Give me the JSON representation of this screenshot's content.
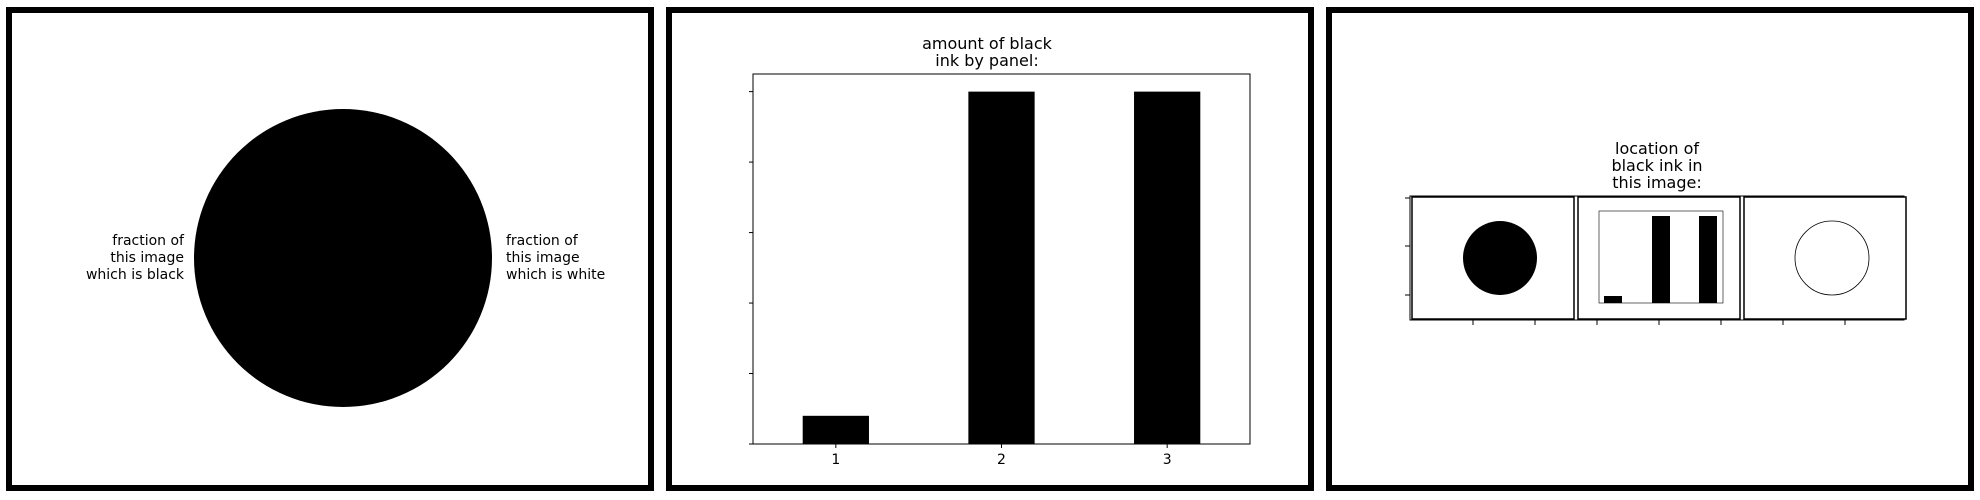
{
  "colors": {
    "ink": "#000000",
    "paper": "#ffffff",
    "frame": "#000000"
  },
  "panel1": {
    "label_black": "fraction of\nthis image\nwhich is black",
    "label_white": "fraction of\nthis image\nwhich is white"
  },
  "panel3": {
    "title": "location of\nblack ink in\nthis image:"
  },
  "chart_data": {
    "type": "bar",
    "title": "amount of black\nink by panel:",
    "categories": [
      "1",
      "2",
      "3"
    ],
    "values": [
      0.08,
      1.0,
      1.0
    ],
    "xlabel": "",
    "ylabel": "",
    "ylim": [
      0,
      1.05
    ],
    "grid": false,
    "legend": "none",
    "bar_color": "#000000"
  }
}
